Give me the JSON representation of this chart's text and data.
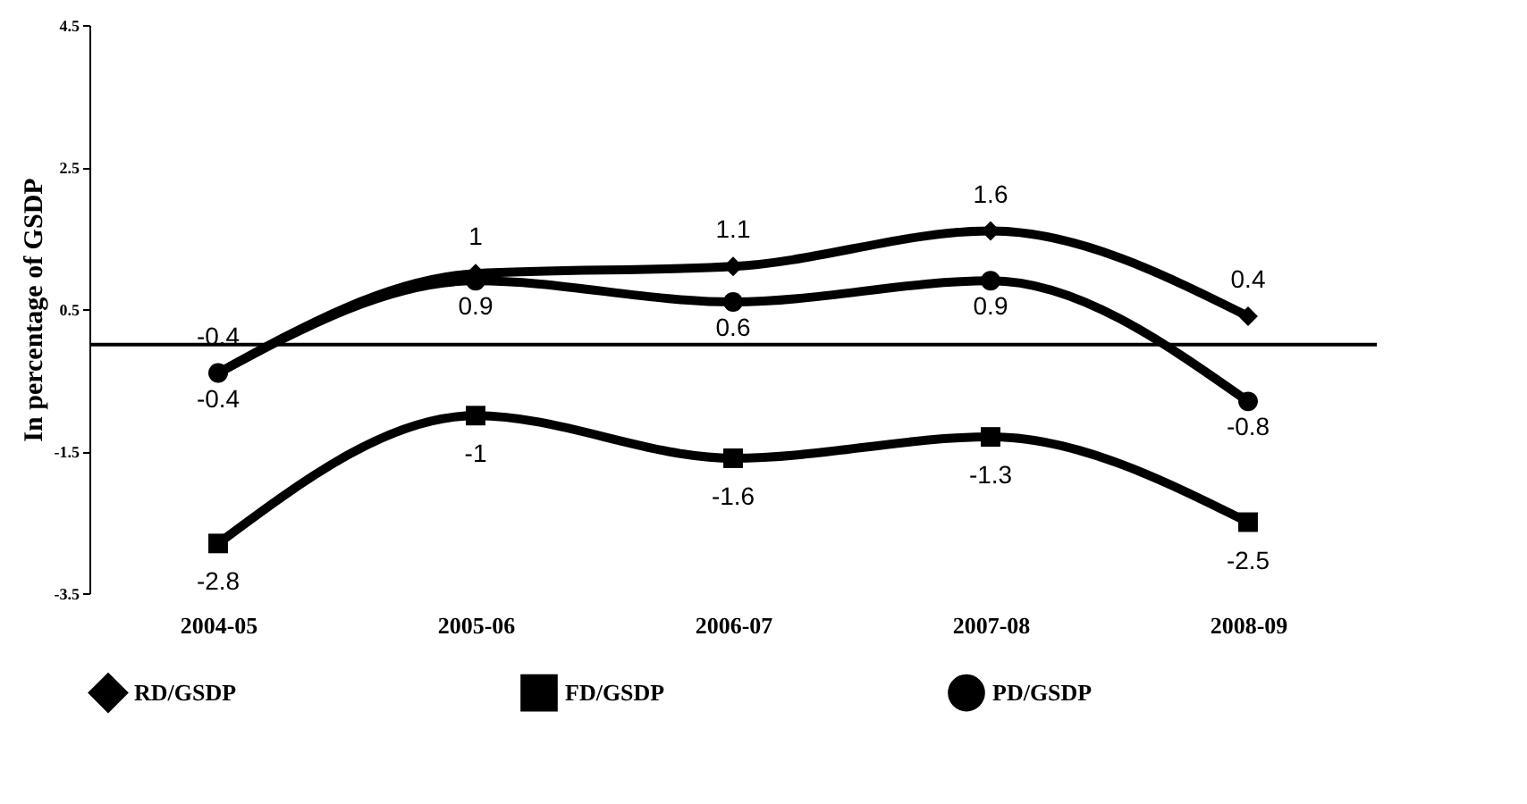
{
  "chart_data": {
    "type": "line",
    "ylabel": "In percentage of GSDP",
    "categories": [
      "2004-05",
      "2005-06",
      "2006-07",
      "2007-08",
      "2008-09"
    ],
    "series": [
      {
        "name": "RD/GSDP",
        "color": "#000000",
        "marker": "diamond",
        "values": [
          -0.4,
          1,
          1.1,
          1.6,
          0.4
        ]
      },
      {
        "name": "FD/GSDP",
        "color": "#000000",
        "marker": "square",
        "values": [
          -2.8,
          -1,
          -1.6,
          -1.3,
          -2.5
        ]
      },
      {
        "name": "PD/GSDP",
        "color": "#000000",
        "marker": "circle",
        "values": [
          -0.4,
          0.9,
          0.6,
          0.9,
          -0.8
        ]
      }
    ],
    "ylim": [
      -3.5,
      4.5
    ],
    "yticks": [
      -3.5,
      -1.5,
      0.5,
      2.5,
      4.5
    ],
    "ref_lines": [
      {
        "axis": "y",
        "value": 0
      }
    ],
    "data_labels": true,
    "legend": "bottom",
    "grid": false,
    "line_style": "solid"
  }
}
